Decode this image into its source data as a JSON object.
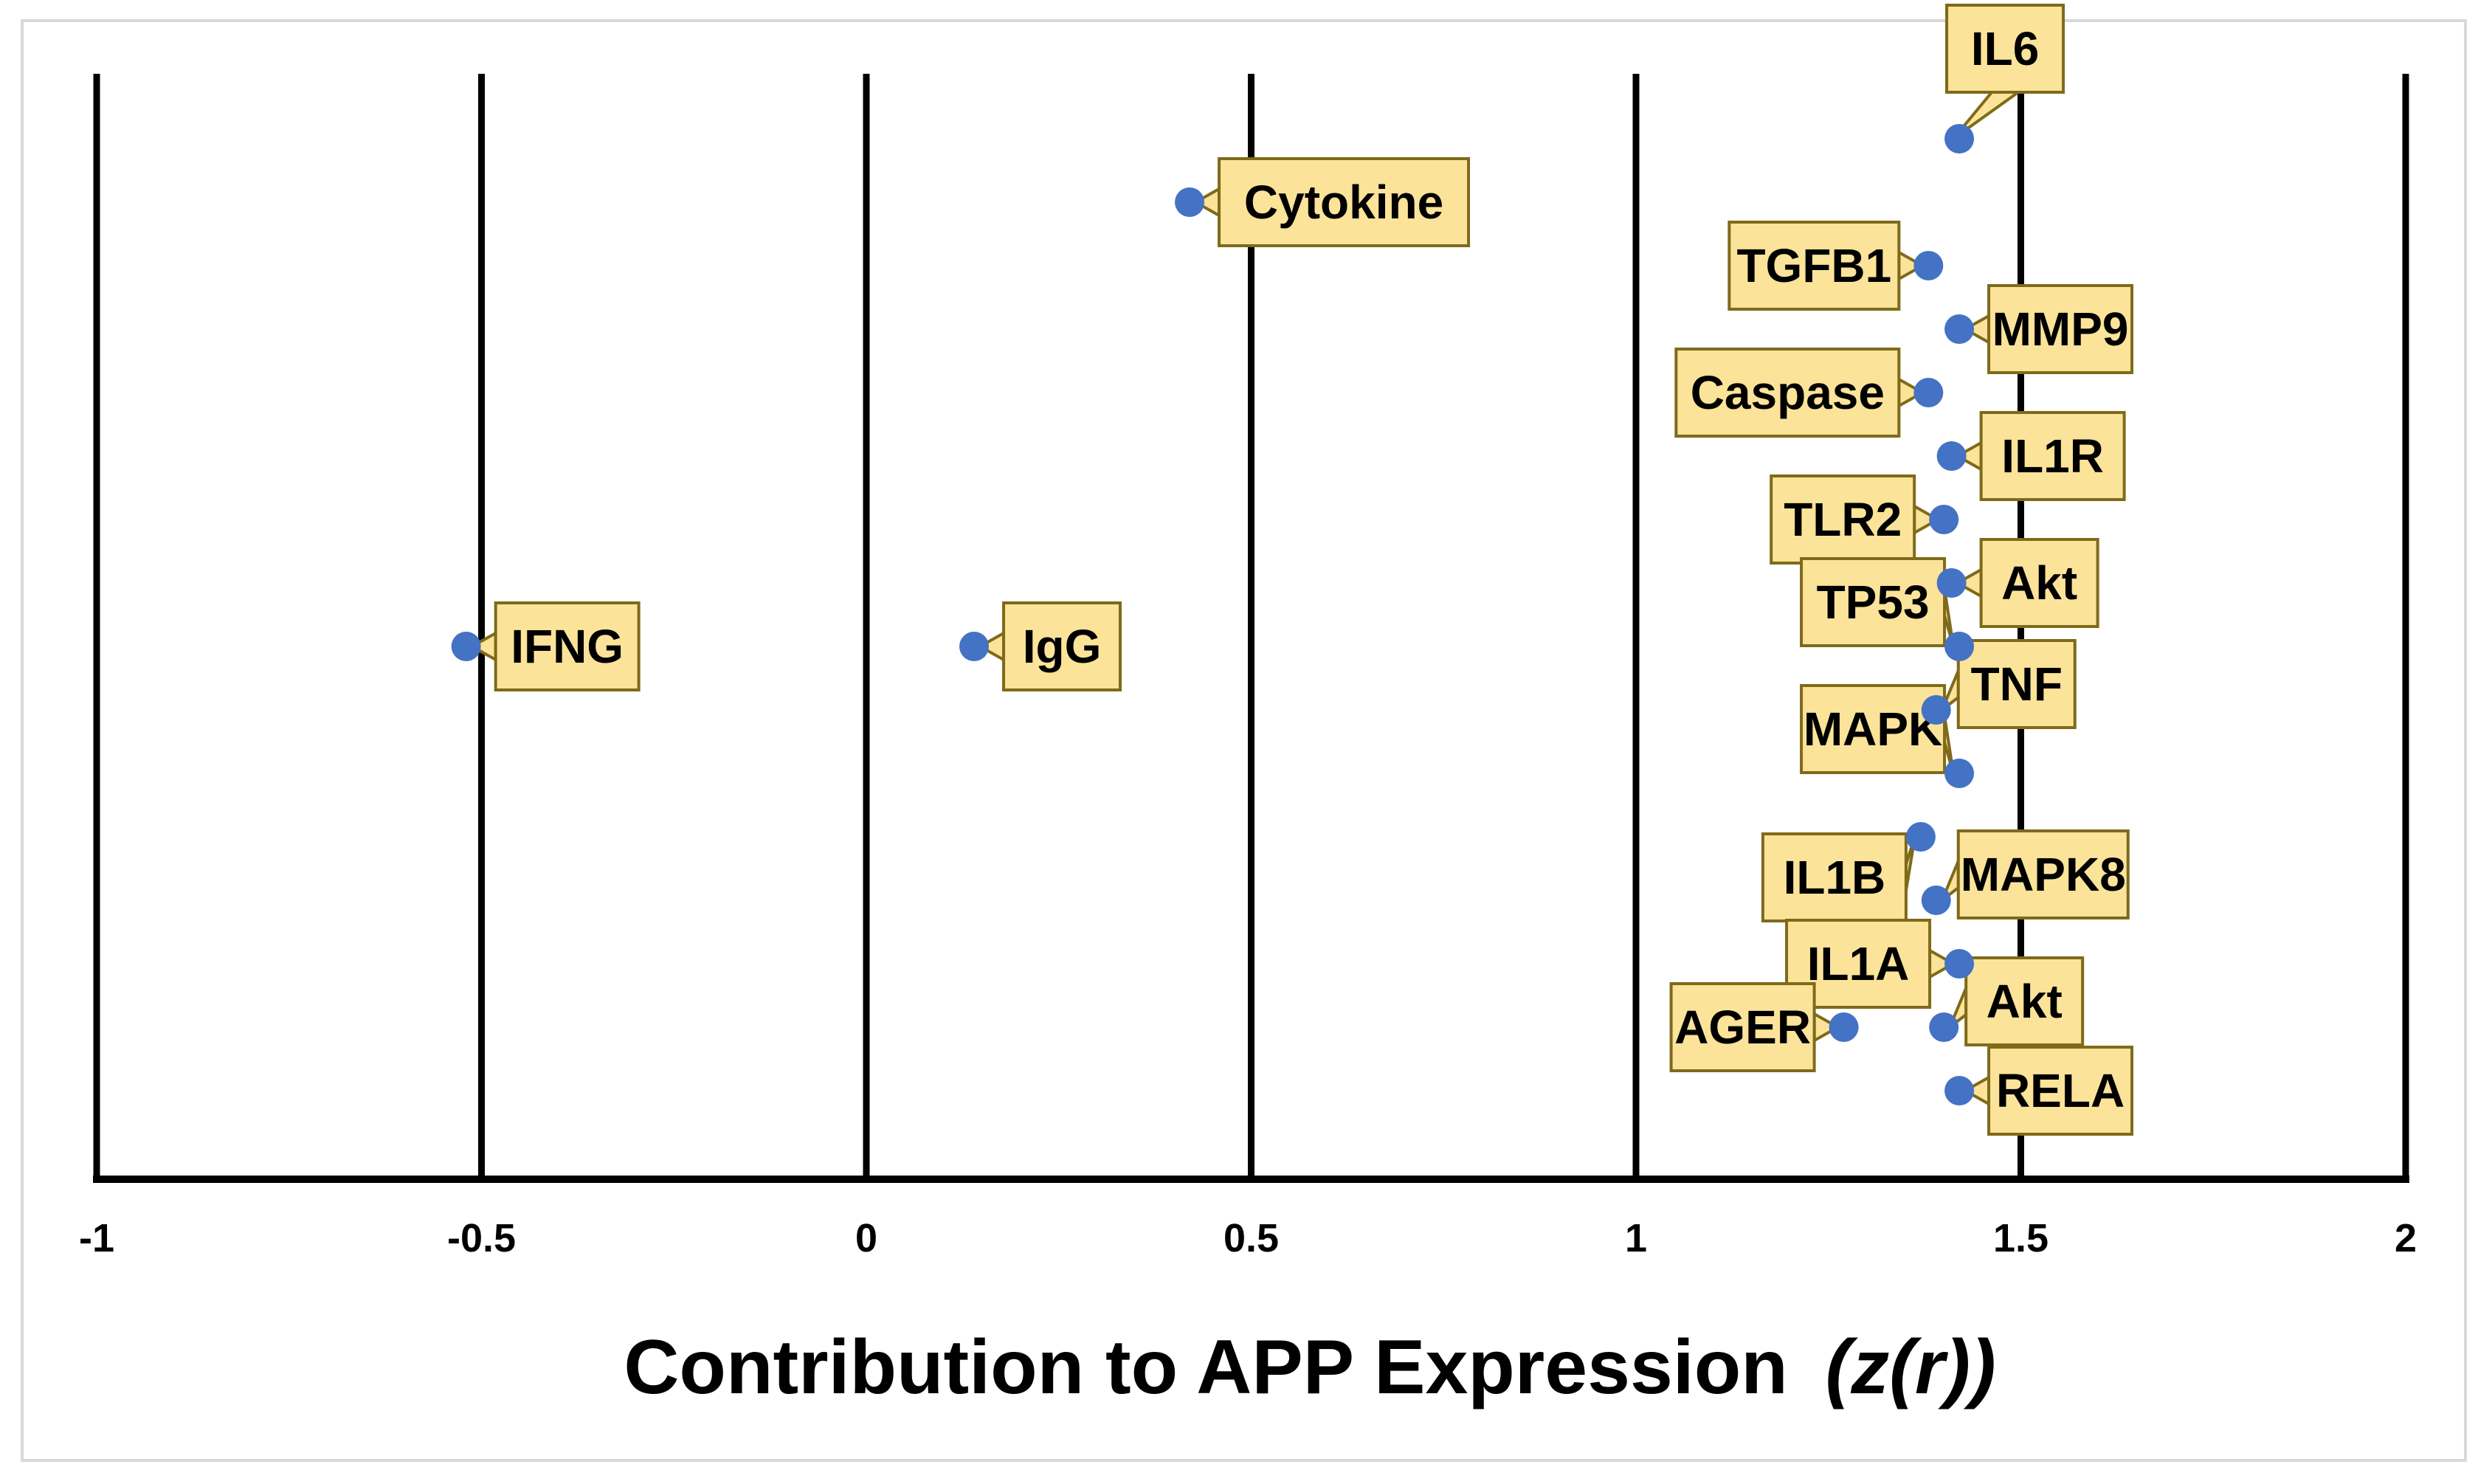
{
  "chart_data": {
    "type": "scatter",
    "title": "",
    "xlabel": "Contribution to APP Expression",
    "xlabel_suffix": "(z(r))",
    "ylabel": "",
    "xlim": [
      -1,
      2
    ],
    "xticks": [
      "-1",
      "-0.5",
      "0",
      "0.5",
      "1",
      "1.5",
      "2"
    ],
    "xtick_values": [
      -1,
      -0.5,
      0,
      0.5,
      1,
      1.5,
      2
    ],
    "grid": "vertical",
    "legend": "none",
    "point_color": "#4472c4",
    "label_fill": "#fbe39a",
    "points": [
      {
        "label": "IL6",
        "x": 1.42,
        "rank": 1,
        "label_side": "up"
      },
      {
        "label": "Cytokine",
        "x": 0.42,
        "rank": 2,
        "label_side": "right"
      },
      {
        "label": "TGFB1",
        "x": 1.38,
        "rank": 3,
        "label_side": "left"
      },
      {
        "label": "MMP9",
        "x": 1.42,
        "rank": 4,
        "label_side": "right"
      },
      {
        "label": "Caspase",
        "x": 1.38,
        "rank": 5,
        "label_side": "left"
      },
      {
        "label": "IL1R",
        "x": 1.41,
        "rank": 6,
        "label_side": "right"
      },
      {
        "label": "TLR2",
        "x": 1.4,
        "rank": 7,
        "label_side": "left"
      },
      {
        "label": "Akt",
        "x": 1.41,
        "rank": 8,
        "label_side": "right"
      },
      {
        "label": "IFNG",
        "x": -0.52,
        "rank": 9,
        "label_side": "right"
      },
      {
        "label": "IgG",
        "x": 0.14,
        "rank": 9,
        "label_side": "right"
      },
      {
        "label": "TP53",
        "x": 1.42,
        "rank": 9,
        "label_side": "up-left"
      },
      {
        "label": "TNF",
        "x": 1.39,
        "rank": 10,
        "label_side": "up-right"
      },
      {
        "label": "MAPK",
        "x": 1.42,
        "rank": 11,
        "label_side": "up-left"
      },
      {
        "label": "IL1B",
        "x": 1.37,
        "rank": 12,
        "label_side": "down-left"
      },
      {
        "label": "MAPK8",
        "x": 1.39,
        "rank": 13,
        "label_side": "up-right"
      },
      {
        "label": "IL1A",
        "x": 1.42,
        "rank": 14,
        "label_side": "left"
      },
      {
        "label": "AGER",
        "x": 1.27,
        "rank": 15,
        "label_side": "left"
      },
      {
        "label": "Akt",
        "x": 1.4,
        "rank": 15,
        "label_side": "up-right"
      },
      {
        "label": "RELA",
        "x": 1.42,
        "rank": 16,
        "label_side": "right"
      }
    ]
  }
}
